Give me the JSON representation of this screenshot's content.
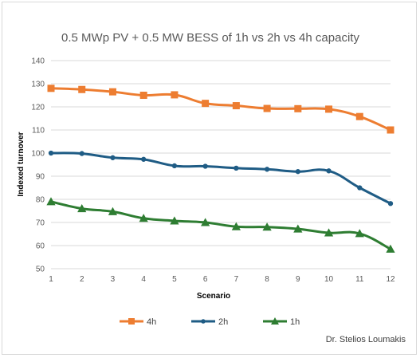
{
  "chart_data": {
    "type": "line",
    "title": "0.5 MWp PV + 0.5 MW BESS of 1h vs 2h vs 4h capacity",
    "xlabel": "Scenario",
    "ylabel": "Indexed turnover",
    "x": [
      1,
      2,
      3,
      4,
      5,
      6,
      7,
      8,
      9,
      10,
      11,
      12
    ],
    "ylim": [
      50,
      140
    ],
    "yticks": [
      50,
      60,
      70,
      80,
      90,
      100,
      110,
      120,
      130,
      140
    ],
    "grid": true,
    "legend_position": "bottom",
    "series": [
      {
        "name": "4h",
        "color": "#ED7D31",
        "marker": "square",
        "values": [
          128,
          127.5,
          126.5,
          125,
          125.2,
          121.5,
          120.5,
          119.3,
          119.2,
          119,
          115.8,
          110
        ]
      },
      {
        "name": "2h",
        "color": "#1F5C85",
        "marker": "circle",
        "values": [
          100,
          99.8,
          98,
          97.3,
          94.5,
          94.3,
          93.5,
          93,
          92,
          92.3,
          85,
          78.2
        ]
      },
      {
        "name": "1h",
        "color": "#2E7D32",
        "marker": "triangle",
        "values": [
          79,
          76,
          74.7,
          71.8,
          70.7,
          70,
          68.2,
          68,
          67.2,
          65.5,
          65.2,
          58.5
        ]
      }
    ]
  },
  "credit": "Dr. Stelios Loumakis"
}
